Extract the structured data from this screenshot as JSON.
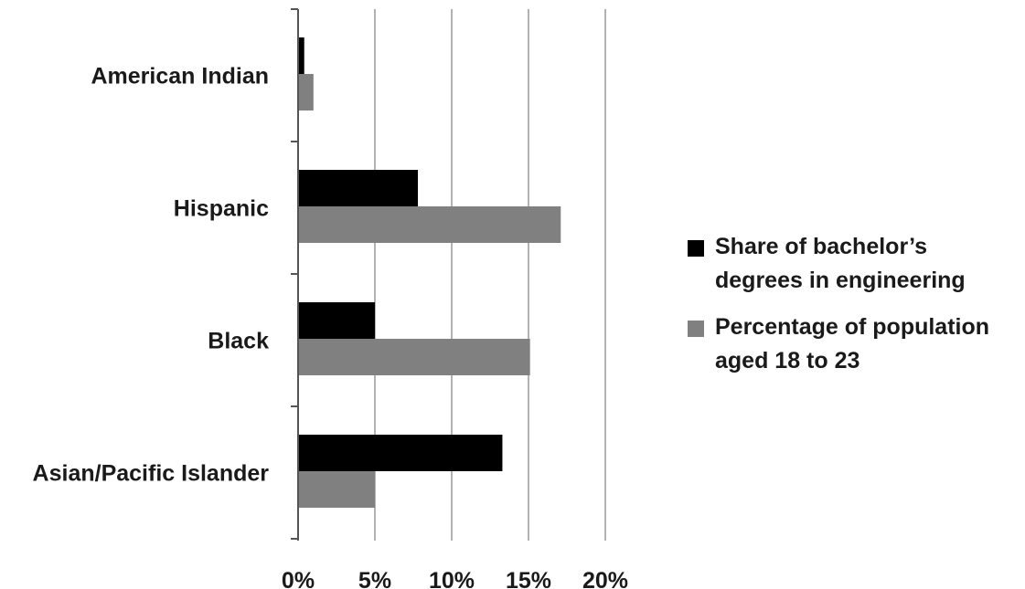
{
  "chart_data": {
    "type": "bar",
    "orientation": "horizontal",
    "categories": [
      "American Indian",
      "Hispanic",
      "Black",
      "Asian/Pacific Islander"
    ],
    "series": [
      {
        "name": "Share of bachelor’s degrees in engineering",
        "color": "#000000",
        "values": [
          0.4,
          7.8,
          5.0,
          13.3
        ]
      },
      {
        "name": "Percentage of population aged 18 to 23",
        "color": "#808080",
        "values": [
          1.0,
          17.1,
          15.1,
          5.0
        ]
      }
    ],
    "x_ticks": [
      "0%",
      "5%",
      "10%",
      "15%",
      "20%"
    ],
    "x_tick_values": [
      0,
      5,
      10,
      15,
      20
    ],
    "xlim": [
      0,
      20
    ],
    "grid": "vertical",
    "legend_position": "right",
    "title": "",
    "xlabel": "",
    "ylabel": ""
  },
  "legend": {
    "item1_line1": "Share of bachelor’s",
    "item1_line2": "degrees in engineering",
    "item2_line1": "Percentage of population",
    "item2_line2": "aged 18 to 23"
  }
}
